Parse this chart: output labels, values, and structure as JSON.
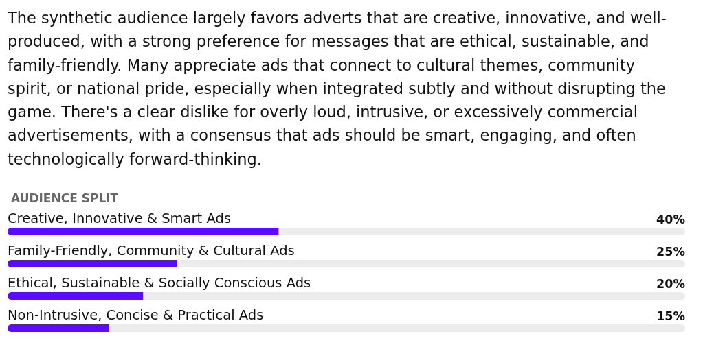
{
  "chart_data": {
    "type": "bar",
    "orientation": "horizontal",
    "subtitle": "The synthetic audience largely favors adverts that are creative, innovative, and well-produced, with a strong preference for messages that are ethical, sustainable, and family-friendly. Many appreciate ads that connect to cultural themes, community spirit, or national pride, especially when integrated subtly and without disrupting the game. There's a clear dislike for overly loud, intrusive, or excessively commercial advertisements, with a consensus that ads should be smart, engaging, and often technologically forward-thinking.",
    "title": "AUDIENCE SPLIT",
    "categories": [
      "Creative, Innovative & Smart Ads",
      "Family-Friendly, Community & Cultural Ads",
      "Ethical, Sustainable & Socially Conscious Ads",
      "Non-Intrusive, Concise & Practical Ads"
    ],
    "values": [
      40,
      25,
      20,
      15
    ],
    "value_labels": [
      "40%",
      "25%",
      "20%",
      "15%"
    ],
    "color": "#5b0bff",
    "xlim": [
      0,
      100
    ],
    "tick_labels": "y"
  }
}
